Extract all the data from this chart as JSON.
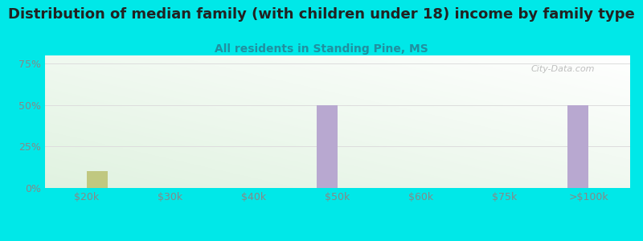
{
  "title": "Distribution of median family (with children under 18) income by family type",
  "subtitle": "All residents in Standing Pine, MS",
  "categories": [
    "$20k",
    "$30k",
    "$40k",
    "$50k",
    "$60k",
    "$75k",
    ">$100k"
  ],
  "married_couple": [
    0,
    0,
    0,
    50,
    0,
    0,
    50
  ],
  "female_no_husband": [
    10,
    0,
    0,
    0,
    0,
    0,
    0
  ],
  "bar_width": 0.25,
  "married_color": "#b8a8d0",
  "female_color": "#c0c880",
  "background_color": "#00e8e8",
  "ylim": [
    0,
    80
  ],
  "yticks": [
    0,
    25,
    50,
    75
  ],
  "ytick_labels": [
    "0%",
    "25%",
    "50%",
    "75%"
  ],
  "title_fontsize": 13,
  "subtitle_fontsize": 10,
  "subtitle_color": "#2090a0",
  "watermark": "City-Data.com",
  "grid_color": "#dddddd",
  "tick_color": "#888888"
}
